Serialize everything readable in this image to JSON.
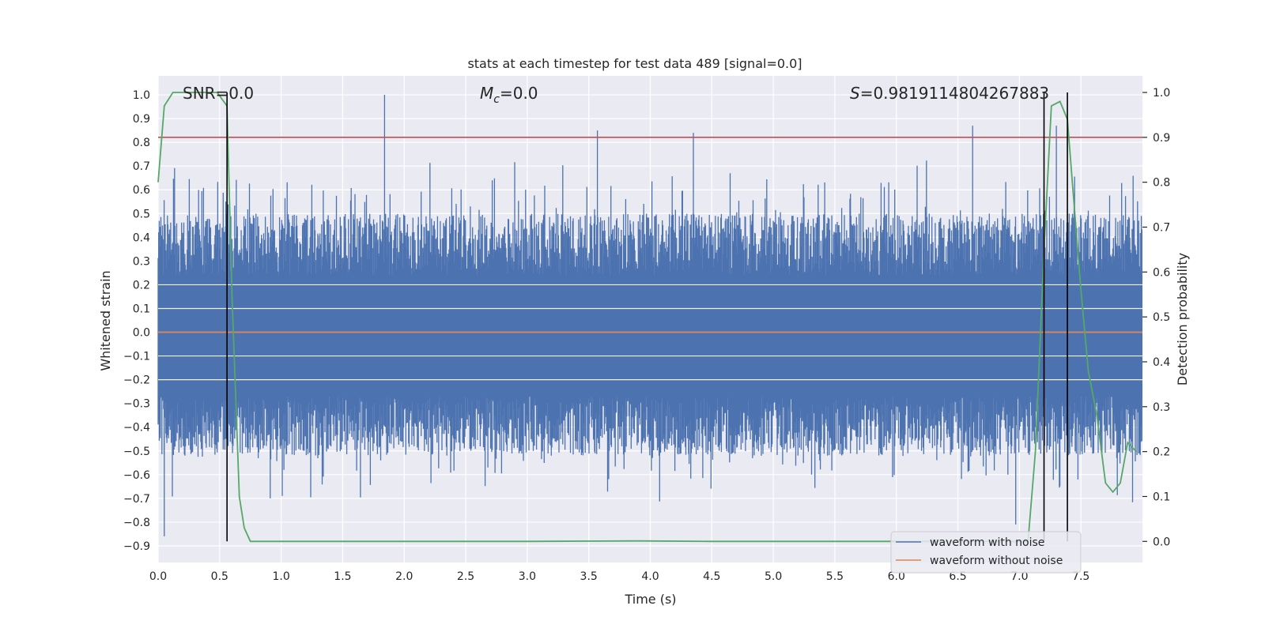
{
  "chart_data": {
    "type": "line",
    "title": "stats at each timestep for test data 489 [signal=0.0]",
    "xlabel": "Time (s)",
    "ylabel": "Whitened strain",
    "y2label": "Detection probability",
    "xlim": [
      0.0,
      8.0
    ],
    "ylim": [
      -0.97,
      1.08
    ],
    "y2lim": [
      -0.047,
      1.037
    ],
    "x_ticks": [
      "0.0",
      "0.5",
      "1.0",
      "1.5",
      "2.0",
      "2.5",
      "3.0",
      "3.5",
      "4.0",
      "4.5",
      "5.0",
      "5.5",
      "6.0",
      "6.5",
      "7.0",
      "7.5"
    ],
    "y_ticks": [
      "1.0",
      "0.9",
      "0.8",
      "0.7",
      "0.6",
      "0.5",
      "0.4",
      "0.3",
      "0.2",
      "0.1",
      "0.0",
      "-0.1",
      "-0.2",
      "-0.3",
      "-0.4",
      "-0.5",
      "-0.6",
      "-0.7",
      "-0.8",
      "-0.9"
    ],
    "y2_ticks": [
      "1.0",
      "0.9",
      "0.8",
      "0.7",
      "0.6",
      "0.5",
      "0.4",
      "0.3",
      "0.2",
      "0.1",
      "0.0"
    ],
    "grid": true,
    "legend_position": "lower-right",
    "annotations": {
      "snr": "SNR=0.0",
      "mc_symbol": "M",
      "mc_sub": "c",
      "mc_value": "=0.0",
      "s_symbol": "S",
      "s_value": "=0.9819114804267883"
    },
    "series": [
      {
        "name": "waveform with noise",
        "color": "#4c72b0",
        "axis": "left",
        "description_values": "dense noise between about -0.86 and 1.0",
        "peaks": [
          [
            0.05,
            -0.86
          ],
          [
            0.55,
            0.55
          ],
          [
            1.84,
            1.0
          ],
          [
            3.57,
            0.85
          ],
          [
            4.35,
            0.84
          ],
          [
            6.62,
            0.87
          ],
          [
            7.3,
            0.87
          ],
          [
            6.97,
            -0.81
          ]
        ]
      },
      {
        "name": "waveform without noise",
        "color": "#dd8452",
        "axis": "left",
        "values_constant": 0.0
      },
      {
        "name": "detection probability",
        "color": "#55a868",
        "axis": "right",
        "x": [
          0.0,
          0.05,
          0.12,
          0.2,
          0.3,
          0.4,
          0.48,
          0.56,
          0.6,
          0.66,
          0.7,
          0.75,
          0.8,
          1.5,
          3.0,
          3.9,
          4.5,
          5.5,
          6.5,
          7.07,
          7.13,
          7.2,
          7.26,
          7.33,
          7.39,
          7.43,
          7.5,
          7.56,
          7.63,
          7.7,
          7.76,
          7.82,
          7.88,
          7.95
        ],
        "y": [
          0.8,
          0.97,
          1.0,
          1.0,
          1.0,
          1.0,
          1.0,
          0.97,
          0.55,
          0.1,
          0.03,
          0.0,
          0.0,
          0.0,
          0.0,
          0.001,
          0.0,
          0.0,
          0.0,
          0.0,
          0.2,
          0.65,
          0.97,
          0.98,
          0.94,
          0.8,
          0.56,
          0.38,
          0.28,
          0.13,
          0.11,
          0.13,
          0.22,
          0.2
        ]
      }
    ],
    "threshold_line": {
      "color": "#c44e52",
      "y2": 0.9
    },
    "vertical_markers": [
      0.56,
      7.2,
      7.39
    ]
  }
}
